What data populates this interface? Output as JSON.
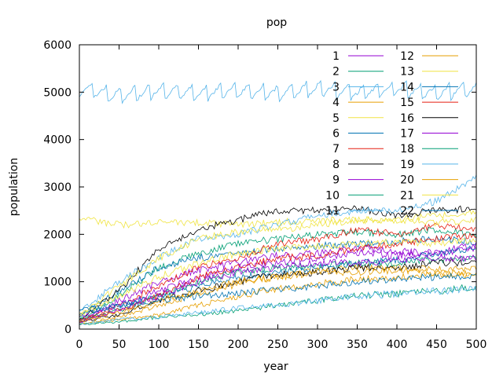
{
  "chart_data": {
    "type": "line",
    "title": "pop",
    "xlabel": "year",
    "ylabel": "population",
    "xlim": [
      0,
      500
    ],
    "ylim": [
      0,
      6000
    ],
    "x_ticks": [
      0,
      50,
      100,
      150,
      200,
      250,
      300,
      350,
      400,
      450,
      500
    ],
    "y_ticks": [
      0,
      1000,
      2000,
      3000,
      4000,
      5000,
      6000
    ],
    "grid": false,
    "legend_position": "top-right",
    "x": [
      0,
      50,
      100,
      150,
      200,
      250,
      300,
      350,
      400,
      450,
      500
    ],
    "series": [
      {
        "name": "1",
        "color": "#9400d3",
        "values": [
          150,
          600,
          1000,
          1250,
          1400,
          1550,
          1600,
          1700,
          1650,
          1600,
          1700
        ]
      },
      {
        "name": "2",
        "color": "#009e73",
        "values": [
          200,
          700,
          1300,
          1600,
          1800,
          1900,
          2000,
          2050,
          2000,
          2100,
          2000
        ]
      },
      {
        "name": "3",
        "color": "#56b4e9",
        "values": [
          5100,
          4950,
          5050,
          5000,
          5050,
          5000,
          5100,
          5000,
          5100,
          5000,
          5100
        ]
      },
      {
        "name": "4",
        "color": "#e69f00",
        "values": [
          100,
          250,
          500,
          750,
          950,
          1100,
          1250,
          1300,
          1300,
          1250,
          1300
        ]
      },
      {
        "name": "5",
        "color": "#f0e442",
        "values": [
          2350,
          2200,
          2250,
          2250,
          2200,
          2250,
          2300,
          2300,
          2300,
          2400,
          2450
        ]
      },
      {
        "name": "6",
        "color": "#0072b2",
        "values": [
          300,
          800,
          1300,
          1500,
          1600,
          1700,
          1750,
          1800,
          1850,
          1900,
          1850
        ]
      },
      {
        "name": "7",
        "color": "#e51e10",
        "values": [
          150,
          500,
          900,
          1300,
          1500,
          1800,
          1900,
          2100,
          2000,
          2200,
          2100
        ]
      },
      {
        "name": "8",
        "color": "#000000",
        "values": [
          200,
          800,
          1700,
          2100,
          2300,
          2500,
          2500,
          2550,
          2400,
          2500,
          2550
        ]
      },
      {
        "name": "9",
        "color": "#9400d3",
        "values": [
          250,
          500,
          800,
          1100,
          1300,
          1400,
          1500,
          1600,
          1550,
          1600,
          1800
        ]
      },
      {
        "name": "10",
        "color": "#009e73",
        "values": [
          200,
          400,
          700,
          1000,
          1200,
          1300,
          1350,
          1400,
          1400,
          1450,
          1500
        ]
      },
      {
        "name": "11",
        "color": "#56b4e9",
        "values": [
          350,
          1000,
          1500,
          1900,
          2000,
          2200,
          2400,
          2500,
          2500,
          2700,
          3200
        ]
      },
      {
        "name": "12",
        "color": "#e69f00",
        "values": [
          100,
          200,
          300,
          500,
          700,
          850,
          950,
          1050,
          1100,
          1150,
          1200
        ]
      },
      {
        "name": "13",
        "color": "#f0e442",
        "values": [
          300,
          900,
          1500,
          1900,
          2050,
          2100,
          2200,
          2300,
          2300,
          2250,
          2300
        ]
      },
      {
        "name": "14",
        "color": "#0072b2",
        "values": [
          300,
          500,
          700,
          900,
          1100,
          1200,
          1300,
          1400,
          1450,
          1600,
          1700
        ]
      },
      {
        "name": "15",
        "color": "#e51e10",
        "values": [
          200,
          400,
          700,
          1100,
          1300,
          1500,
          1550,
          1700,
          1800,
          1900,
          2000
        ]
      },
      {
        "name": "16",
        "color": "#000000",
        "values": [
          150,
          300,
          600,
          800,
          1000,
          1150,
          1200,
          1300,
          1300,
          1400,
          1400
        ]
      },
      {
        "name": "17",
        "color": "#9400d3",
        "values": [
          150,
          400,
          700,
          1000,
          1200,
          1300,
          1400,
          1400,
          1450,
          1500,
          1500
        ]
      },
      {
        "name": "18",
        "color": "#009e73",
        "values": [
          100,
          150,
          250,
          300,
          400,
          500,
          600,
          700,
          750,
          800,
          900
        ]
      },
      {
        "name": "19",
        "color": "#56b4e9",
        "values": [
          100,
          200,
          250,
          350,
          450,
          500,
          600,
          700,
          750,
          800,
          850
        ]
      },
      {
        "name": "20",
        "color": "#e69f00",
        "values": [
          150,
          350,
          600,
          800,
          1000,
          1100,
          1200,
          1200,
          1250,
          1150,
          1150
        ]
      },
      {
        "name": "21",
        "color": "#f0e442",
        "values": [
          300,
          700,
          1100,
          1400,
          1600,
          1700,
          1750,
          1800,
          1850,
          1800,
          1900
        ]
      },
      {
        "name": "22",
        "color": "#0072b2",
        "values": [
          400,
          500,
          600,
          700,
          750,
          850,
          900,
          1000,
          1050,
          1100,
          1100
        ]
      }
    ]
  }
}
